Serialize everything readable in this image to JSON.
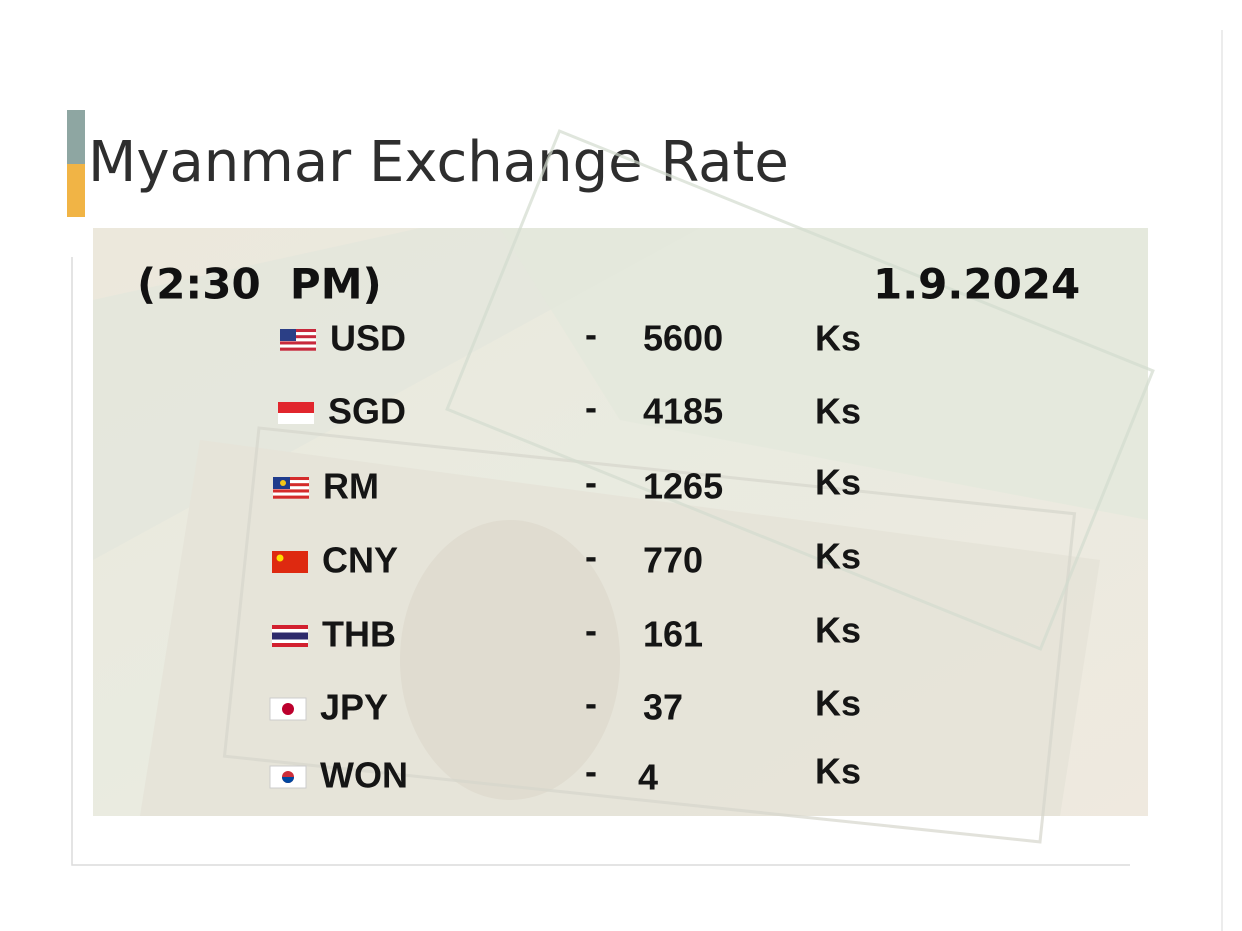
{
  "header": {
    "title": "Myanmar Exchange Rate",
    "time": "(2:30  PM)",
    "date": "1.9.2024"
  },
  "table": {
    "rows": [
      [
        "USD",
        "-",
        5600,
        "Ks"
      ],
      [
        "SGD",
        "-",
        4185,
        "Ks"
      ],
      [
        "RM",
        "-",
        1265,
        "Ks"
      ],
      [
        "CNY",
        "-",
        770,
        "Ks"
      ],
      [
        "THB",
        "-",
        161,
        "Ks"
      ],
      [
        "JPY",
        "-",
        37,
        "Ks"
      ],
      [
        "WON",
        "-",
        4,
        "Ks"
      ]
    ]
  }
}
